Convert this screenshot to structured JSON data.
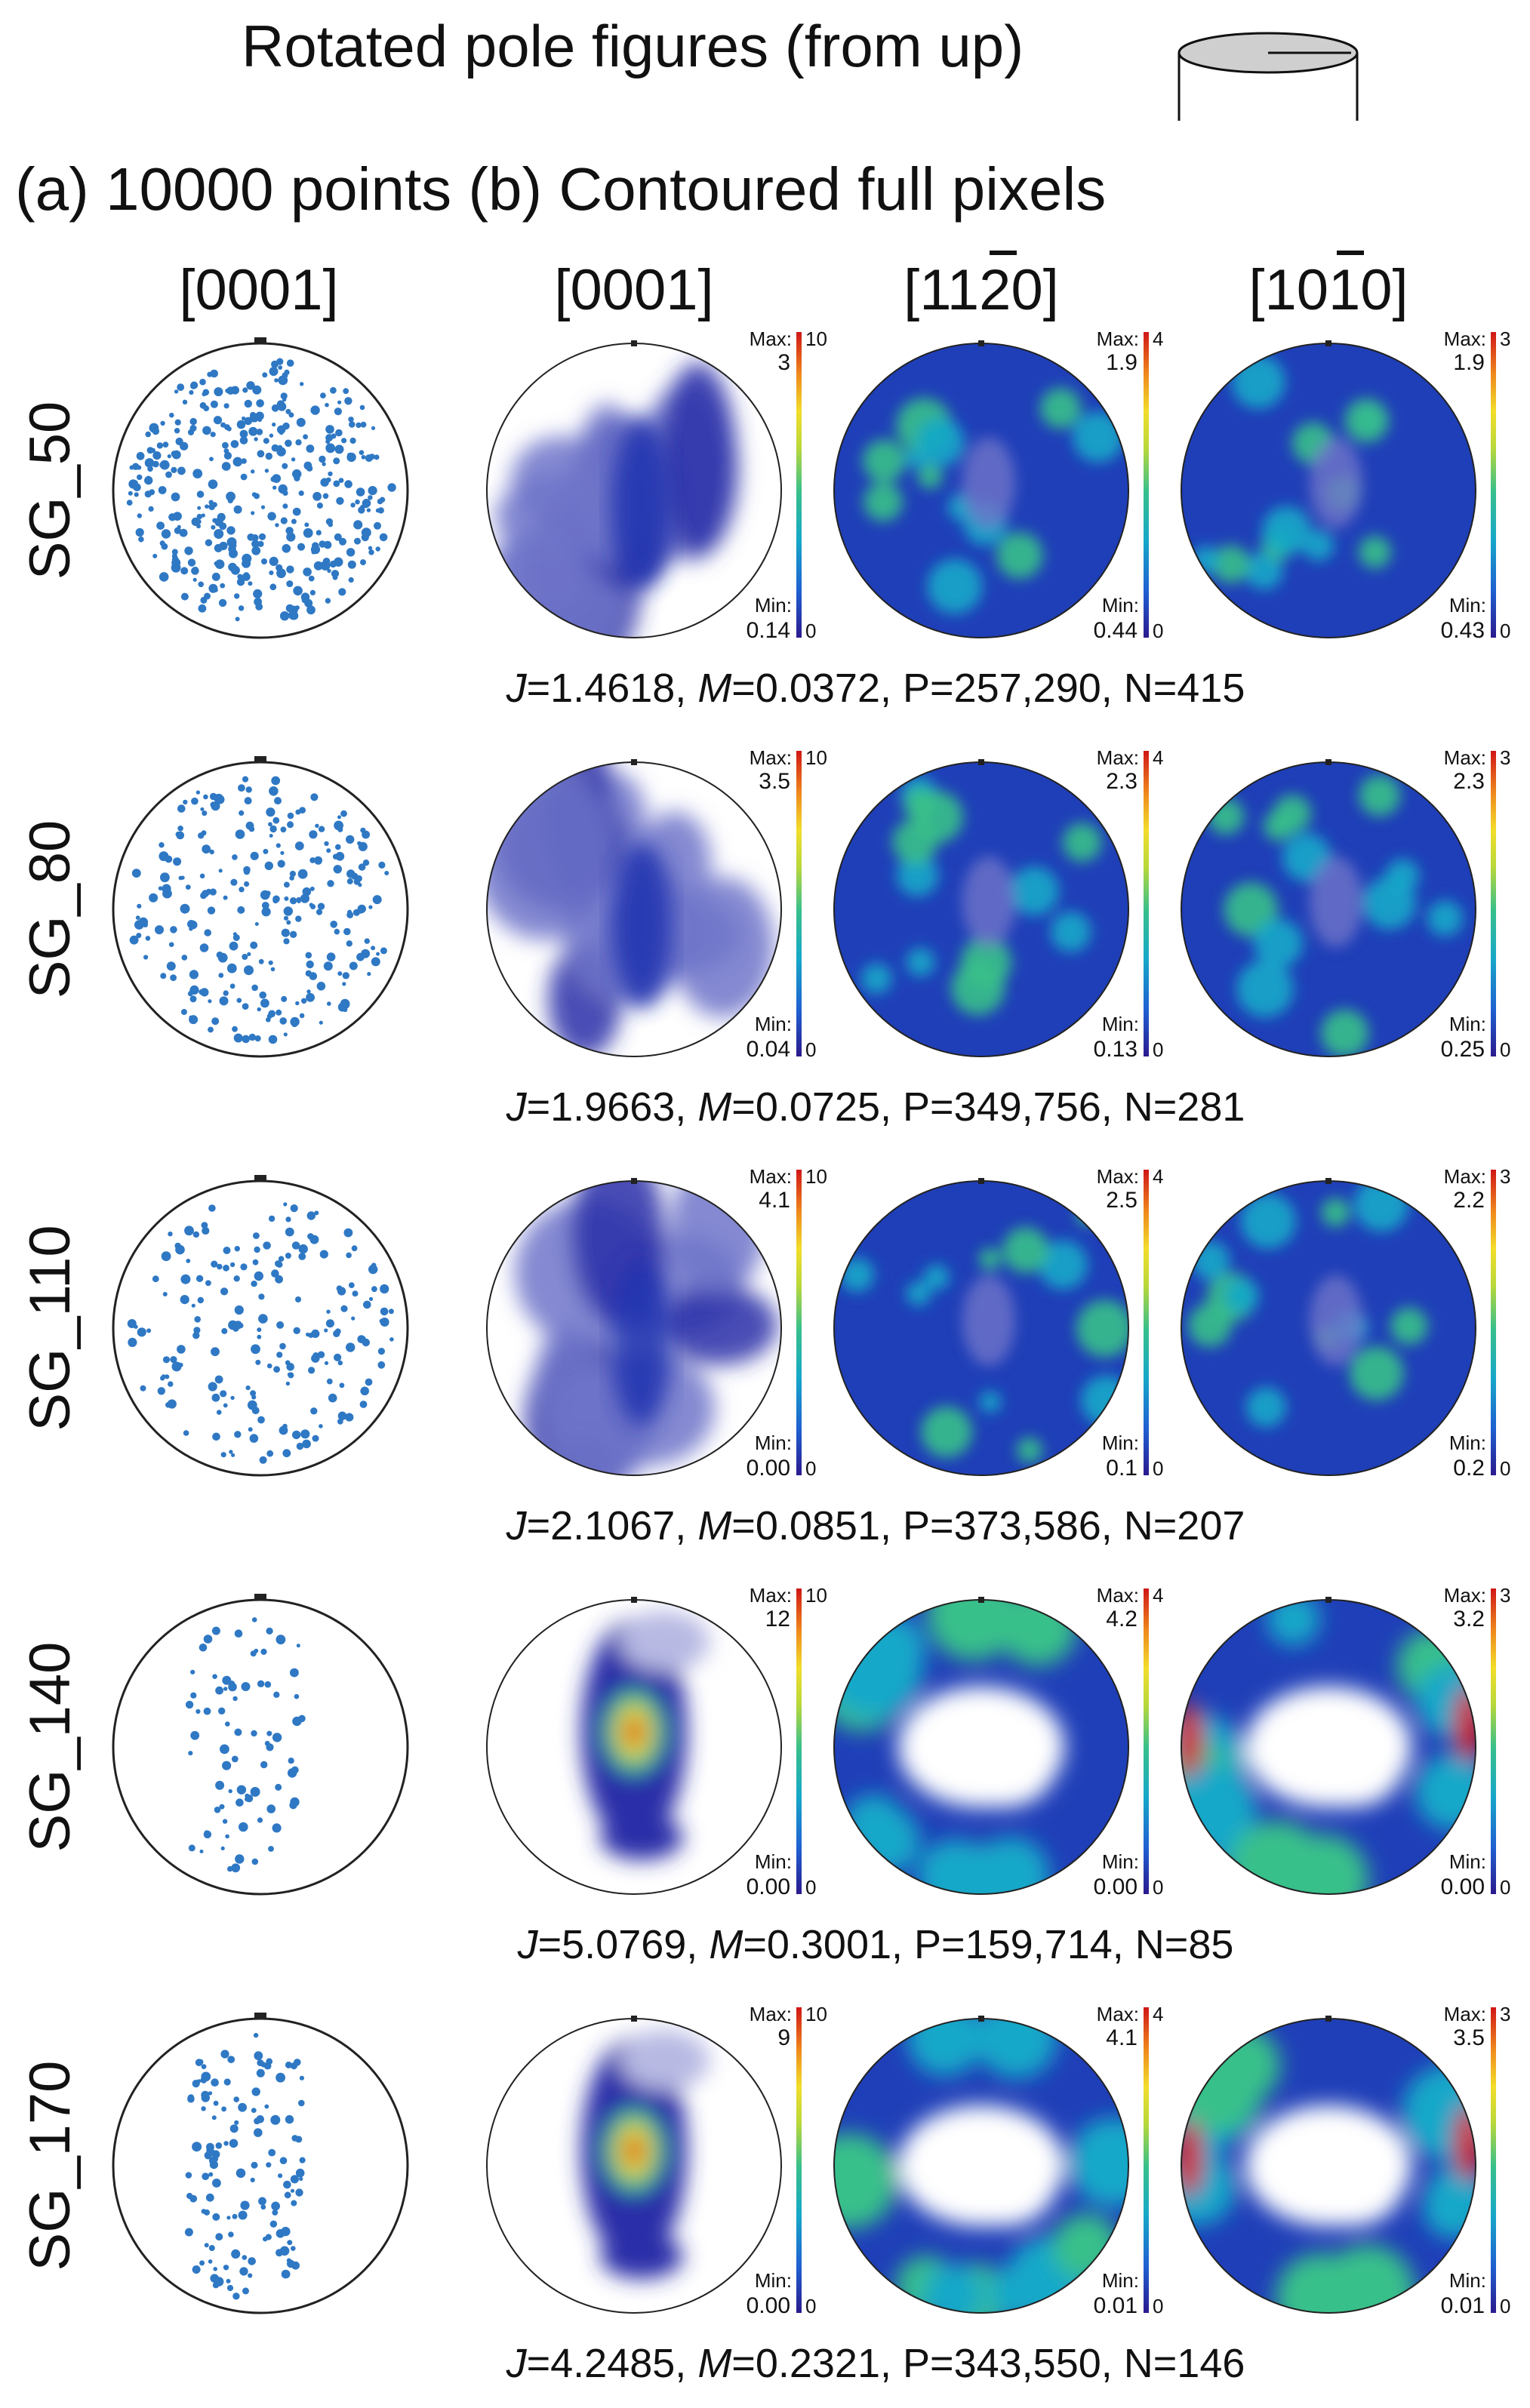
{
  "header": {
    "title": "Rotated pole figures (from up)",
    "subtitle": "(a) 10000 points (b) Contoured full pixels"
  },
  "columns": [
    {
      "label": "[0001]",
      "overbar_digit": null
    },
    {
      "label": "[0001]",
      "overbar_digit": null
    },
    {
      "prefix": "[11",
      "bar": "2",
      "suffix": "0]"
    },
    {
      "prefix": "[10",
      "bar": "1",
      "suffix": "0]"
    }
  ],
  "colorbar": {
    "max_label": "Max:",
    "min_label": "Min:",
    "colors": [
      "#2a1a8e",
      "#1f5fd1",
      "#16a8c9",
      "#38c08a",
      "#b8d83a",
      "#f2dd2a",
      "#f08a1c",
      "#d01616",
      "#8e0a0a"
    ],
    "contour_low_color": "#ffffff",
    "dots_color": "#2f78c4"
  },
  "rows": [
    {
      "label": "SG_50",
      "stats": {
        "J": "1.4618",
        "M": "0.0372",
        "P": "257,290",
        "N": "415"
      },
      "figures": [
        {
          "max": "3",
          "min": "0.14",
          "scale_top": "10",
          "scale_bottom": "0",
          "style": "dilute"
        },
        {
          "max": "1.9",
          "min": "0.44",
          "scale_top": "4",
          "scale_bottom": "0",
          "style": "blue"
        },
        {
          "max": "1.9",
          "min": "0.43",
          "scale_top": "3",
          "scale_bottom": "0",
          "style": "blue"
        }
      ]
    },
    {
      "label": "SG_80",
      "stats": {
        "J": "1.9663",
        "M": "0.0725",
        "P": "349,756",
        "N": "281"
      },
      "figures": [
        {
          "max": "3.5",
          "min": "0.04",
          "scale_top": "10",
          "scale_bottom": "0",
          "style": "dilute"
        },
        {
          "max": "2.3",
          "min": "0.13",
          "scale_top": "4",
          "scale_bottom": "0",
          "style": "blue"
        },
        {
          "max": "2.3",
          "min": "0.25",
          "scale_top": "3",
          "scale_bottom": "0",
          "style": "blue"
        }
      ]
    },
    {
      "label": "SG_110",
      "stats": {
        "J": "2.1067",
        "M": "0.0851",
        "P": "373,586",
        "N": "207"
      },
      "figures": [
        {
          "max": "4.1",
          "min": "0.00",
          "scale_top": "10",
          "scale_bottom": "0",
          "style": "dilute"
        },
        {
          "max": "2.5",
          "min": "0.1",
          "scale_top": "4",
          "scale_bottom": "0",
          "style": "blue"
        },
        {
          "max": "2.2",
          "min": "0.2",
          "scale_top": "3",
          "scale_bottom": "0",
          "style": "blue"
        }
      ]
    },
    {
      "label": "SG_140",
      "stats": {
        "J": "5.0769",
        "M": "0.3001",
        "P": "159,714",
        "N": "85"
      },
      "figures": [
        {
          "max": "12",
          "min": "0.00",
          "scale_top": "10",
          "scale_bottom": "0",
          "style": "peak"
        },
        {
          "max": "4.2",
          "min": "0.00",
          "scale_top": "4",
          "scale_bottom": "0",
          "style": "ring"
        },
        {
          "max": "3.2",
          "min": "0.00",
          "scale_top": "3",
          "scale_bottom": "0",
          "style": "ring"
        }
      ]
    },
    {
      "label": "SG_170",
      "stats": {
        "J": "4.2485",
        "M": "0.2321",
        "P": "343,550",
        "N": "146"
      },
      "figures": [
        {
          "max": "9",
          "min": "0.00",
          "scale_top": "10",
          "scale_bottom": "0",
          "style": "peak"
        },
        {
          "max": "4.1",
          "min": "0.01",
          "scale_top": "4",
          "scale_bottom": "0",
          "style": "ring"
        },
        {
          "max": "3.5",
          "min": "0.01",
          "scale_top": "3",
          "scale_bottom": "0",
          "style": "ring"
        }
      ]
    }
  ]
}
